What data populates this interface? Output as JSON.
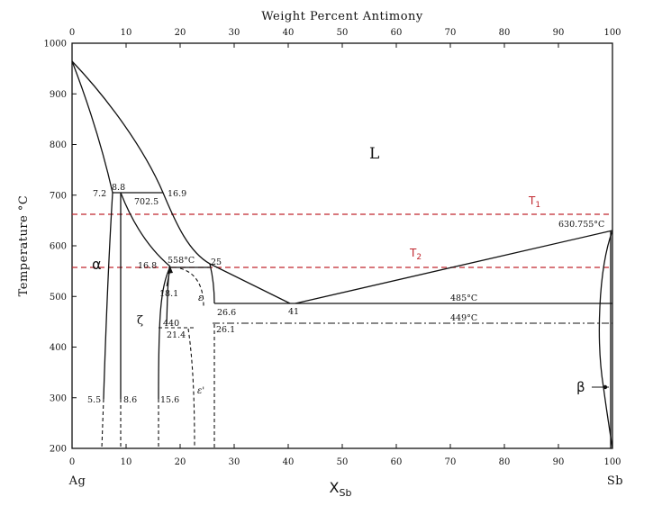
{
  "top_axis": {
    "title": "Weight Percent Antimony",
    "ticks": [
      0,
      10,
      20,
      30,
      40,
      50,
      60,
      70,
      80,
      90,
      100
    ]
  },
  "bottom_axis": {
    "ticks": [
      0,
      10,
      20,
      30,
      40,
      50,
      60,
      70,
      80,
      90,
      100
    ],
    "left_element": "Ag",
    "right_element": "Sb",
    "label_main": "X",
    "label_sub": "Sb"
  },
  "left_axis": {
    "title": "Temperature °C",
    "ticks": [
      200,
      300,
      400,
      500,
      600,
      700,
      800,
      900,
      1000
    ],
    "range": [
      200,
      1000
    ]
  },
  "phases": {
    "liquid": "L",
    "alpha": "α",
    "zeta": "ζ",
    "epsilon": "ε",
    "epsilon_prime": "ε'",
    "beta": "β"
  },
  "isotherms": {
    "T1": {
      "label": "T",
      "sub": "1",
      "temperature": 663
    },
    "T2": {
      "label": "T",
      "sub": "2",
      "temperature": 558
    },
    "color": "#c0262d"
  },
  "annotations": [
    {
      "id": "c72",
      "text": "7.2"
    },
    {
      "id": "c88",
      "text": "8.8"
    },
    {
      "id": "c169",
      "text": "16.9"
    },
    {
      "id": "t7025",
      "text": "702.5"
    },
    {
      "id": "t558",
      "text": "558°C"
    },
    {
      "id": "c168",
      "text": "16.8"
    },
    {
      "id": "c25",
      "text": "25"
    },
    {
      "id": "c181",
      "text": "18.1"
    },
    {
      "id": "c266",
      "text": "26.6"
    },
    {
      "id": "c41",
      "text": "41"
    },
    {
      "id": "t485",
      "text": "485°C"
    },
    {
      "id": "t449",
      "text": "449°C"
    },
    {
      "id": "t440",
      "text": "440"
    },
    {
      "id": "c214",
      "text": "21.4"
    },
    {
      "id": "c261",
      "text": "26.1"
    },
    {
      "id": "t630",
      "text": "630.755°C"
    },
    {
      "id": "c55",
      "text": "5.5"
    },
    {
      "id": "c86",
      "text": "8.6"
    },
    {
      "id": "c156",
      "text": "15.6"
    }
  ]
}
